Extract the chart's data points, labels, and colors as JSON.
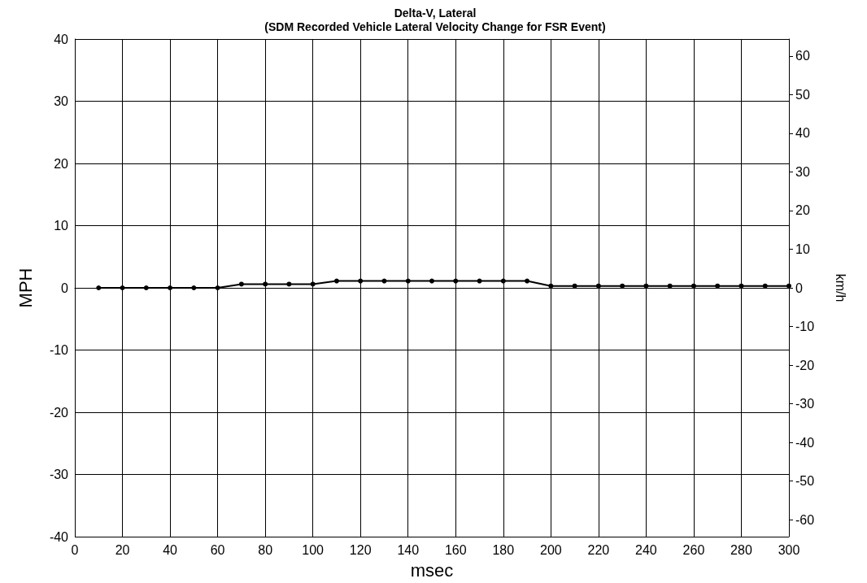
{
  "chart_data": {
    "type": "line",
    "title": "Delta-V, Lateral",
    "subtitle": "(SDM Recorded Vehicle Lateral Velocity Change for FSR Event)",
    "xlabel": "msec",
    "ylabel": "MPH",
    "y2label": "km/h",
    "x": [
      10,
      20,
      30,
      40,
      50,
      60,
      70,
      80,
      90,
      100,
      110,
      120,
      130,
      140,
      150,
      160,
      170,
      180,
      190,
      200,
      210,
      220,
      230,
      240,
      250,
      260,
      270,
      280,
      290,
      300
    ],
    "series": [
      {
        "color": "#000000",
        "values": [
          0,
          0,
          0,
          0,
          0,
          0,
          0.6,
          0.6,
          0.6,
          0.6,
          1.1,
          1.1,
          1.1,
          1.1,
          1.1,
          1.1,
          1.1,
          1.1,
          1.1,
          0.3,
          0.3,
          0.3,
          0.3,
          0.3,
          0.3,
          0.3,
          0.3,
          0.3,
          0.3,
          0.3
        ]
      }
    ],
    "xlim": [
      0,
      300
    ],
    "xticks": [
      0,
      20,
      40,
      60,
      80,
      100,
      120,
      140,
      160,
      180,
      200,
      220,
      240,
      260,
      280,
      300
    ],
    "ylim": [
      -40,
      40
    ],
    "yticks": [
      -40,
      -30,
      -20,
      -10,
      0,
      10,
      20,
      30,
      40
    ],
    "y2lim": [
      -64.4,
      64.4
    ],
    "y2ticks": [
      -60,
      -50,
      -40,
      -30,
      -20,
      -10,
      0,
      10,
      20,
      30,
      40,
      50,
      60
    ],
    "grid": true,
    "marker": "circle",
    "line_style": "solid"
  }
}
